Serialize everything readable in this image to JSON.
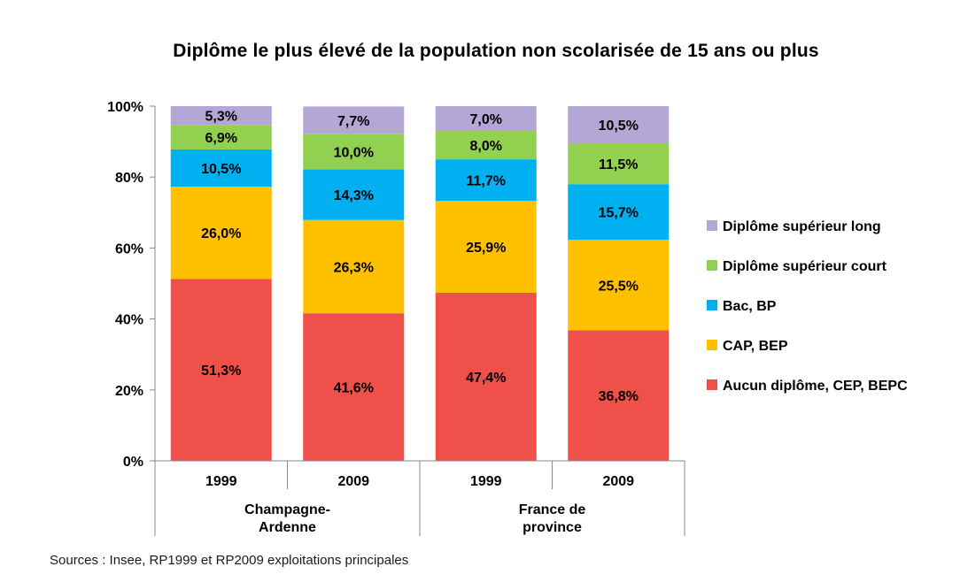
{
  "chart_data": {
    "type": "bar",
    "stacked": true,
    "title": "Diplôme le plus élevé de la population non scolarisée de 15 ans ou plus",
    "y_tick_labels": [
      "0%",
      "20%",
      "40%",
      "60%",
      "80%",
      "100%"
    ],
    "ylim": [
      0,
      100
    ],
    "groups": [
      {
        "label": "Champagne-\nArdenne",
        "label_lines": [
          "Champagne-",
          "Ardenne"
        ],
        "categories": [
          "1999",
          "2009"
        ]
      },
      {
        "label": "France de\nprovince",
        "label_lines": [
          "France de",
          "province"
        ],
        "categories": [
          "1999",
          "2009"
        ]
      }
    ],
    "categories": [
      "1999",
      "2009",
      "1999",
      "2009"
    ],
    "series": [
      {
        "name": "Aucun diplôme, CEP, BEPC",
        "color": "#f0504a",
        "values": [
          51.3,
          41.6,
          47.4,
          36.8
        ],
        "labels": [
          "51,3%",
          "41,6%",
          "47,4%",
          "36,8%"
        ]
      },
      {
        "name": "CAP, BEP",
        "color": "#ffc000",
        "values": [
          26.0,
          26.3,
          25.9,
          25.5
        ],
        "labels": [
          "26,0%",
          "26,3%",
          "25,9%",
          "25,5%"
        ]
      },
      {
        "name": "Bac, BP",
        "color": "#00b0f0",
        "values": [
          10.5,
          14.3,
          11.7,
          15.7
        ],
        "labels": [
          "10,5%",
          "14,3%",
          "11,7%",
          "15,7%"
        ]
      },
      {
        "name": "Diplôme supérieur court",
        "color": "#92d050",
        "values": [
          6.9,
          10.0,
          8.0,
          11.5
        ],
        "labels": [
          "6,9%",
          "10,0%",
          "8,0%",
          "11,5%"
        ]
      },
      {
        "name": "Diplôme supérieur long",
        "color": "#b4a7d6",
        "values": [
          5.3,
          7.7,
          7.0,
          10.5
        ],
        "labels": [
          "5,3%",
          "7,7%",
          "7,0%",
          "10,5%"
        ]
      }
    ],
    "legend_position": "right",
    "grid": false
  },
  "source": "Sources : Insee, RP1999 et RP2009 exploitations principales"
}
